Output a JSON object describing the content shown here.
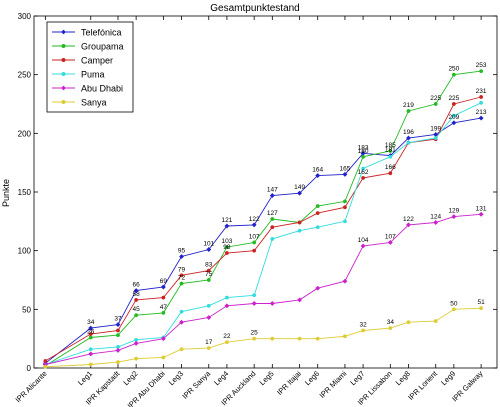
{
  "chart_data": {
    "type": "line",
    "title": "Gesamtpunktestand",
    "xlabel": "",
    "ylabel": "Punkte",
    "ylim": [
      0,
      300
    ],
    "yticks": [
      0,
      50,
      100,
      150,
      200,
      250,
      300
    ],
    "categories": [
      "IPR Alicante",
      "Leg1",
      "IPR Kapstadt",
      "Leg2",
      "IPR Abu Dhabi",
      "Leg3",
      "IPR Sanya",
      "Leg4",
      "IPR Auckland",
      "Leg5",
      "IPR Itajai",
      "Leg6",
      "IPR Miami",
      "Leg7",
      "IPR Lissabon",
      "Leg8",
      "IPR Lorient",
      "Leg9",
      "IPR Galway"
    ],
    "x": [
      0,
      1,
      1.6,
      2,
      2.6,
      3,
      3.6,
      4,
      4.6,
      5,
      5.6,
      6,
      6.6,
      7,
      7.6,
      8,
      8.6,
      9,
      9.6
    ],
    "xtick_positions": [
      0,
      1,
      1.6,
      2,
      2.6,
      3,
      3.6,
      4,
      4.6,
      5,
      5.6,
      6,
      6.6,
      7,
      7.6,
      8,
      8.6,
      9,
      9.6
    ],
    "legend_position": "top-left",
    "grid": false,
    "series": [
      {
        "name": "Telefónica",
        "color": "#2222cc",
        "marker": "diamond",
        "values": [
          4,
          34,
          37,
          66,
          69,
          95,
          101,
          121,
          122,
          147,
          149,
          164,
          165,
          183,
          181,
          196,
          199,
          209,
          213
        ]
      },
      {
        "name": "Groupama",
        "color": "#22bb22",
        "marker": "dot",
        "values": [
          2,
          26,
          28,
          45,
          47,
          72,
          75,
          103,
          107,
          127,
          124,
          138,
          142,
          180,
          185,
          219,
          225,
          250,
          253
        ]
      },
      {
        "name": "Camper",
        "color": "#cc2222",
        "marker": "dot",
        "values": [
          6,
          29,
          32,
          58,
          60,
          79,
          83,
          98,
          100,
          120,
          124,
          132,
          137,
          162,
          166,
          192,
          195,
          225,
          231
        ]
      },
      {
        "name": "Puma",
        "color": "#33dddd",
        "marker": "dot",
        "values": [
          3,
          16,
          18,
          24,
          26,
          48,
          53,
          60,
          62,
          110,
          117,
          120,
          125,
          170,
          180,
          192,
          196,
          215,
          226
        ]
      },
      {
        "name": "Abu Dhabi",
        "color": "#cc22cc",
        "marker": "diamond",
        "values": [
          3,
          12,
          15,
          21,
          25,
          39,
          43,
          53,
          55,
          55,
          58,
          68,
          74,
          104,
          107,
          122,
          124,
          129,
          131
        ]
      },
      {
        "name": "Sanya",
        "color": "#ddcc33",
        "marker": "dot",
        "values": [
          1,
          3,
          5,
          8,
          9,
          16,
          17,
          22,
          25,
          25,
          25,
          25,
          27,
          32,
          34,
          39,
          40,
          50,
          51
        ]
      }
    ],
    "point_labels": [
      {
        "series": 0,
        "index": 1,
        "text": "34"
      },
      {
        "series": 0,
        "index": 2,
        "text": "37"
      },
      {
        "series": 0,
        "index": 3,
        "text": "66"
      },
      {
        "series": 0,
        "index": 4,
        "text": "69"
      },
      {
        "series": 0,
        "index": 5,
        "text": "95"
      },
      {
        "series": 0,
        "index": 6,
        "text": "101"
      },
      {
        "series": 0,
        "index": 7,
        "text": "121"
      },
      {
        "series": 0,
        "index": 8,
        "text": "122"
      },
      {
        "series": 0,
        "index": 9,
        "text": "147"
      },
      {
        "series": 0,
        "index": 10,
        "text": "149"
      },
      {
        "series": 0,
        "index": 11,
        "text": "164"
      },
      {
        "series": 0,
        "index": 12,
        "text": "165"
      },
      {
        "series": 0,
        "index": 13,
        "text": "183"
      },
      {
        "series": 0,
        "index": 14,
        "text": "181"
      },
      {
        "series": 0,
        "index": 15,
        "text": "196"
      },
      {
        "series": 0,
        "index": 16,
        "text": "199"
      },
      {
        "series": 0,
        "index": 17,
        "text": "209"
      },
      {
        "series": 0,
        "index": 18,
        "text": "213"
      },
      {
        "series": 1,
        "index": 1,
        "text": "26"
      },
      {
        "series": 1,
        "index": 3,
        "text": "45"
      },
      {
        "series": 1,
        "index": 4,
        "text": "47"
      },
      {
        "series": 1,
        "index": 5,
        "text": "72"
      },
      {
        "series": 1,
        "index": 6,
        "text": "75"
      },
      {
        "series": 1,
        "index": 7,
        "text": "103"
      },
      {
        "series": 1,
        "index": 8,
        "text": "107"
      },
      {
        "series": 1,
        "index": 9,
        "text": "127"
      },
      {
        "series": 1,
        "index": 13,
        "text": "180"
      },
      {
        "series": 1,
        "index": 14,
        "text": "185"
      },
      {
        "series": 1,
        "index": 15,
        "text": "219"
      },
      {
        "series": 1,
        "index": 16,
        "text": "225"
      },
      {
        "series": 1,
        "index": 17,
        "text": "250"
      },
      {
        "series": 1,
        "index": 18,
        "text": "253"
      },
      {
        "series": 2,
        "index": 3,
        "text": "58"
      },
      {
        "series": 2,
        "index": 5,
        "text": "79"
      },
      {
        "series": 2,
        "index": 6,
        "text": "83"
      },
      {
        "series": 2,
        "index": 7,
        "text": "98"
      },
      {
        "series": 2,
        "index": 13,
        "text": "162"
      },
      {
        "series": 2,
        "index": 14,
        "text": "166"
      },
      {
        "series": 2,
        "index": 17,
        "text": "225"
      },
      {
        "series": 2,
        "index": 18,
        "text": "231"
      },
      {
        "series": 4,
        "index": 13,
        "text": "104"
      },
      {
        "series": 4,
        "index": 14,
        "text": "107"
      },
      {
        "series": 4,
        "index": 15,
        "text": "122"
      },
      {
        "series": 4,
        "index": 16,
        "text": "124"
      },
      {
        "series": 4,
        "index": 17,
        "text": "129"
      },
      {
        "series": 4,
        "index": 18,
        "text": "131"
      },
      {
        "series": 5,
        "index": 6,
        "text": "17"
      },
      {
        "series": 5,
        "index": 7,
        "text": "22"
      },
      {
        "series": 5,
        "index": 8,
        "text": "25"
      },
      {
        "series": 5,
        "index": 13,
        "text": "32"
      },
      {
        "series": 5,
        "index": 14,
        "text": "34"
      },
      {
        "series": 5,
        "index": 17,
        "text": "50"
      },
      {
        "series": 5,
        "index": 18,
        "text": "51"
      }
    ]
  }
}
